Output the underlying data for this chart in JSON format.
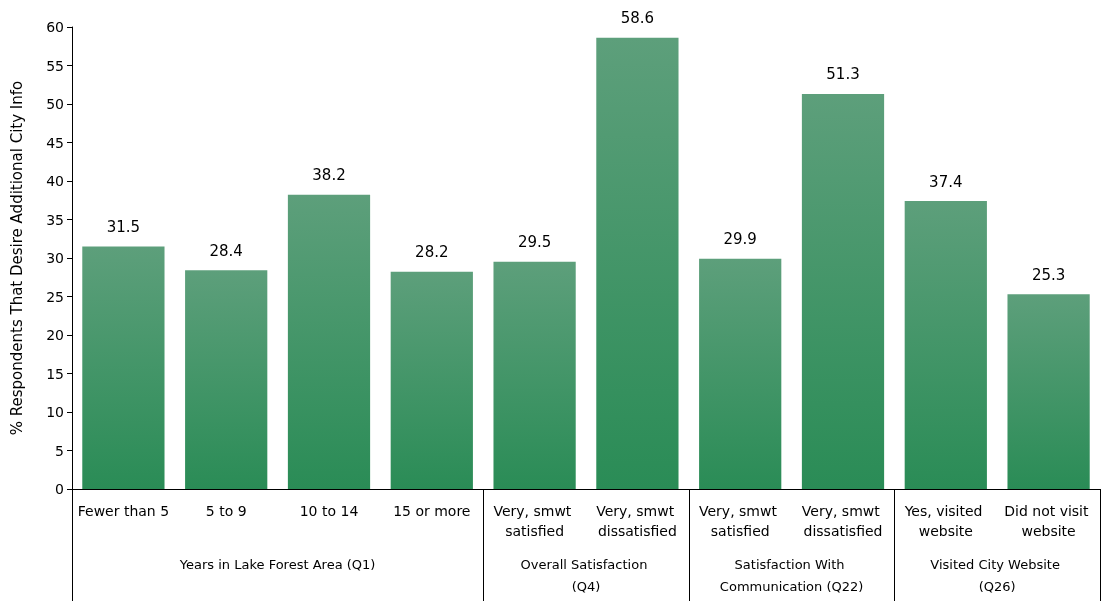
{
  "chart_data": {
    "type": "bar",
    "categories": [
      "Fewer than 5",
      "5 to 9",
      "10 to 14",
      "15 or more",
      "Very, smwt satisfied",
      "Very, smwt dissatisfied",
      "Very, smwt satisfied",
      "Very, smwt dissatisfied",
      "Yes, visited website",
      "Did not visit website"
    ],
    "values": [
      31.5,
      28.4,
      38.2,
      28.2,
      29.5,
      58.6,
      29.9,
      51.3,
      37.4,
      25.3
    ],
    "color": "#27804f",
    "ylabel": "% Respondents That Desire Additional City Info",
    "ylim": [
      0,
      60
    ],
    "yticks": [
      0,
      5,
      10,
      15,
      20,
      25,
      30,
      35,
      40,
      45,
      50,
      55,
      60
    ],
    "data_labels": true,
    "grid": false,
    "annotations": [
      "Years in Lake Forest Area (Q1)",
      "Overall Satisfaction (Q4)",
      "Satisfaction With Communication (Q22)",
      "Visited City Website (Q26)"
    ]
  }
}
